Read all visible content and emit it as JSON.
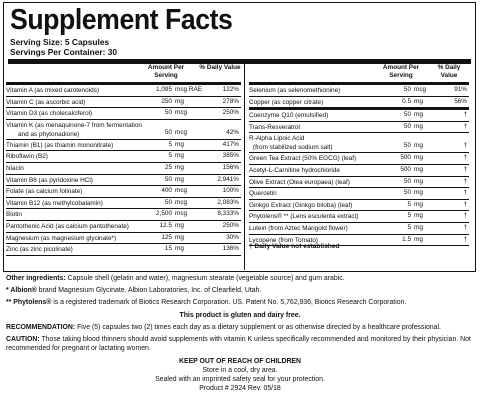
{
  "panel": {
    "title": "Supplement Facts",
    "serving_size": "Serving Size: 5 Capsules",
    "servings_per_container": "Servings Per Container: 30"
  },
  "columns": {
    "amount_header": "Amount Per Serving",
    "dv_header": "% Daily Value"
  },
  "left_rows": [
    {
      "name": "Vitamin A (as mixed carotenoids)",
      "amount": "1,095",
      "unit": "mcg RAE",
      "dv": "122%"
    },
    {
      "name": "Vitamin C (as ascorbic acid)",
      "amount": "250",
      "unit": "mg",
      "dv": "278%"
    },
    {
      "name": "Vitamin D3 (as cholecalciferol)",
      "amount": "50",
      "unit": "mcg",
      "dv": "250%"
    },
    {
      "name": "Vitamin K (as menaquinone-7 from fermentation",
      "name2": "and as phytonadione)",
      "amount": "50",
      "unit": "mcg",
      "dv": "42%"
    },
    {
      "name": "Thiamin (B1) (as thiamin mononitrate)",
      "amount": "5",
      "unit": "mg",
      "dv": "417%"
    },
    {
      "name": "Riboflavin (B2)",
      "amount": "5",
      "unit": "mg",
      "dv": "385%"
    },
    {
      "name": "Niacin",
      "amount": "25",
      "unit": "mg",
      "dv": "156%"
    },
    {
      "name": "Vitamin B6 (as pyridoxine HCl)",
      "amount": "50",
      "unit": "mg",
      "dv": "2,941%"
    },
    {
      "name": "Folate (as calcium folinate)",
      "amount": "400",
      "unit": "mcg",
      "dv": "100%"
    },
    {
      "name": "Vitamin B12 (as methylcobalamin)",
      "amount": "50",
      "unit": "mcg",
      "dv": "2,083%"
    },
    {
      "name": "Biotin",
      "amount": "2,500",
      "unit": "mcg",
      "dv": "8,333%"
    },
    {
      "name": "Pantothenic Acid (as calcium pantothenate)",
      "amount": "12.5",
      "unit": "mg",
      "dv": "250%"
    },
    {
      "name": "Magnesium (as magnesium glycinate*)",
      "amount": "125",
      "unit": "mg",
      "dv": "30%"
    },
    {
      "name": "Zinc (as zinc picolinate)",
      "amount": "15",
      "unit": "mg",
      "dv": "136%"
    }
  ],
  "right_rows": [
    {
      "name": "Selenium (as selenomethionine)",
      "amount": "50",
      "unit": "mcg",
      "dv": "91%"
    },
    {
      "name": "Copper (as copper citrate)",
      "amount": "0.5",
      "unit": "mg",
      "dv": "56%"
    },
    {
      "name": "Coenzyme Q10 (emulsified)",
      "amount": "50",
      "unit": "mg",
      "dv": "†"
    },
    {
      "name": "Trans-Resveratrol",
      "amount": "50",
      "unit": "mg",
      "dv": "†"
    },
    {
      "name": "R-Alpha Lipoic Acid",
      "name2": "(from stabilized sodium salt)",
      "amount": "50",
      "unit": "mg",
      "dv": "†"
    },
    {
      "name": "Green Tea Extract (50% EGCG) (leaf)",
      "amount": "500",
      "unit": "mg",
      "dv": "†"
    },
    {
      "name": "Acetyl-L-Carnitine hydrochloride",
      "amount": "500",
      "unit": "mg",
      "dv": "†"
    },
    {
      "name": "Olive Extract (Olea europaea) (leaf)",
      "amount": "50",
      "unit": "mg",
      "dv": "†"
    },
    {
      "name": "Quercetin",
      "amount": "50",
      "unit": "mg",
      "dv": "†"
    },
    {
      "name": "Ginkgo Extract (Ginkgo biloba) (leaf)",
      "amount": "5",
      "unit": "mg",
      "dv": "†"
    },
    {
      "name": "Phytolens® ** (Lens esculenta extract)",
      "amount": "5",
      "unit": "mg",
      "dv": "†"
    },
    {
      "name": "Lutein (from Aztec Marigold flower)",
      "amount": "5",
      "unit": "mg",
      "dv": "†"
    },
    {
      "name": "Lycopene (from Tomato)",
      "amount": "1.5",
      "unit": "mg",
      "dv": "†"
    }
  ],
  "dv_note": "† Daily Value not established",
  "other_ingredients_label": "Other ingredients:",
  "other_ingredients": " Capsule shell (gelatin and water), magnesium stearate (vegetable source) and gum arabic.",
  "albion_label": "* Albion®",
  "albion_text": " brand Magnesium Glycinate. Albion Laboratories, Inc. of Clearfield, Utah.",
  "phytolens_label": "** Phytolens®",
  "phytolens_text": " is a registered trademark of Biotics Research Corporation. US. Patent No. 5,762,936, Biotics Research Corporation.",
  "gluten_free": "This product is gluten and dairy free.",
  "recommendation_label": "RECOMMENDATION:",
  "recommendation_text": " Five (5) capsules two (2) times each day as a dietary supplement or as otherwise directed by a healthcare professional.",
  "caution_label": "CAUTION:",
  "caution_text": " Those taking blood thinners should avoid supplements with vitamin K unless specifically recommended and monitored by their physician. Not recommended for pregnant or lactating women.",
  "keep_out": "KEEP OUT OF REACH OF CHILDREN",
  "storage": "Store in a cool, dry area.",
  "seal": "Sealed with an imprinted safety seal for your protection.",
  "product_no": "Product # 2924   Rev. 05/18"
}
